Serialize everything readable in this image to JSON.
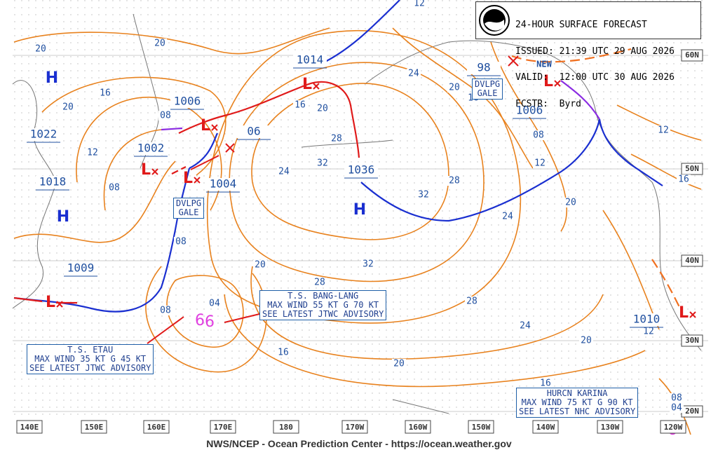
{
  "header": {
    "lines": [
      "24-HOUR SURFACE FORECAST",
      "ISSUED: 21:39 UTC 29 AUG 2026",
      "VALID:  12:00 UTC 30 AUG 2026",
      "FCSTR:  Byrd"
    ]
  },
  "footer": "NWS/NCEP - Ocean Prediction Center - https://ocean.weather.gov",
  "lon_labels": [
    "140E",
    "150E",
    "160E",
    "170E",
    "180",
    "170W",
    "160W",
    "150W",
    "140W",
    "130W",
    "120W"
  ],
  "lat_labels": [
    "60N",
    "50N",
    "40N",
    "30N",
    "20N"
  ],
  "highs": [
    "H",
    "H",
    "H"
  ],
  "lows": [
    "L",
    "L",
    "L",
    "L",
    "L",
    "L",
    "L"
  ],
  "pressure_values": [
    "1022",
    "1018",
    "1009",
    "1002",
    "1006",
    "1004",
    "06",
    "1014",
    "1036",
    "98",
    "1006",
    "1010"
  ],
  "isobar_labels": [
    "20",
    "20",
    "16",
    "20",
    "12",
    "08",
    "08",
    "16",
    "20",
    "28",
    "32",
    "24",
    "08",
    "20",
    "28",
    "32",
    "32",
    "28",
    "24",
    "20",
    "16",
    "12",
    "08",
    "12",
    "20",
    "24",
    "28",
    "24",
    "20",
    "20",
    "16",
    "16",
    "12",
    "12",
    "16",
    "04",
    "08",
    "08",
    "04"
  ],
  "annotations": {
    "new": "NEW",
    "gale_1": [
      "DVLPG",
      "GALE"
    ],
    "gale_2": [
      "DVLPG",
      "GALE"
    ],
    "bang_lang": [
      "T.S. BANG-LANG",
      "MAX WIND 55 KT G 70 KT",
      "SEE LATEST JTWC ADVISORY"
    ],
    "etau": [
      "T.S. ETAU",
      "MAX WIND 35 KT G 45 KT",
      "SEE LATEST JTWC ADVISORY"
    ],
    "karina": [
      "HURCN KARINA",
      "MAX WIND 75 KT G 90 KT",
      "SEE LATEST NHC ADVISORY"
    ]
  }
}
